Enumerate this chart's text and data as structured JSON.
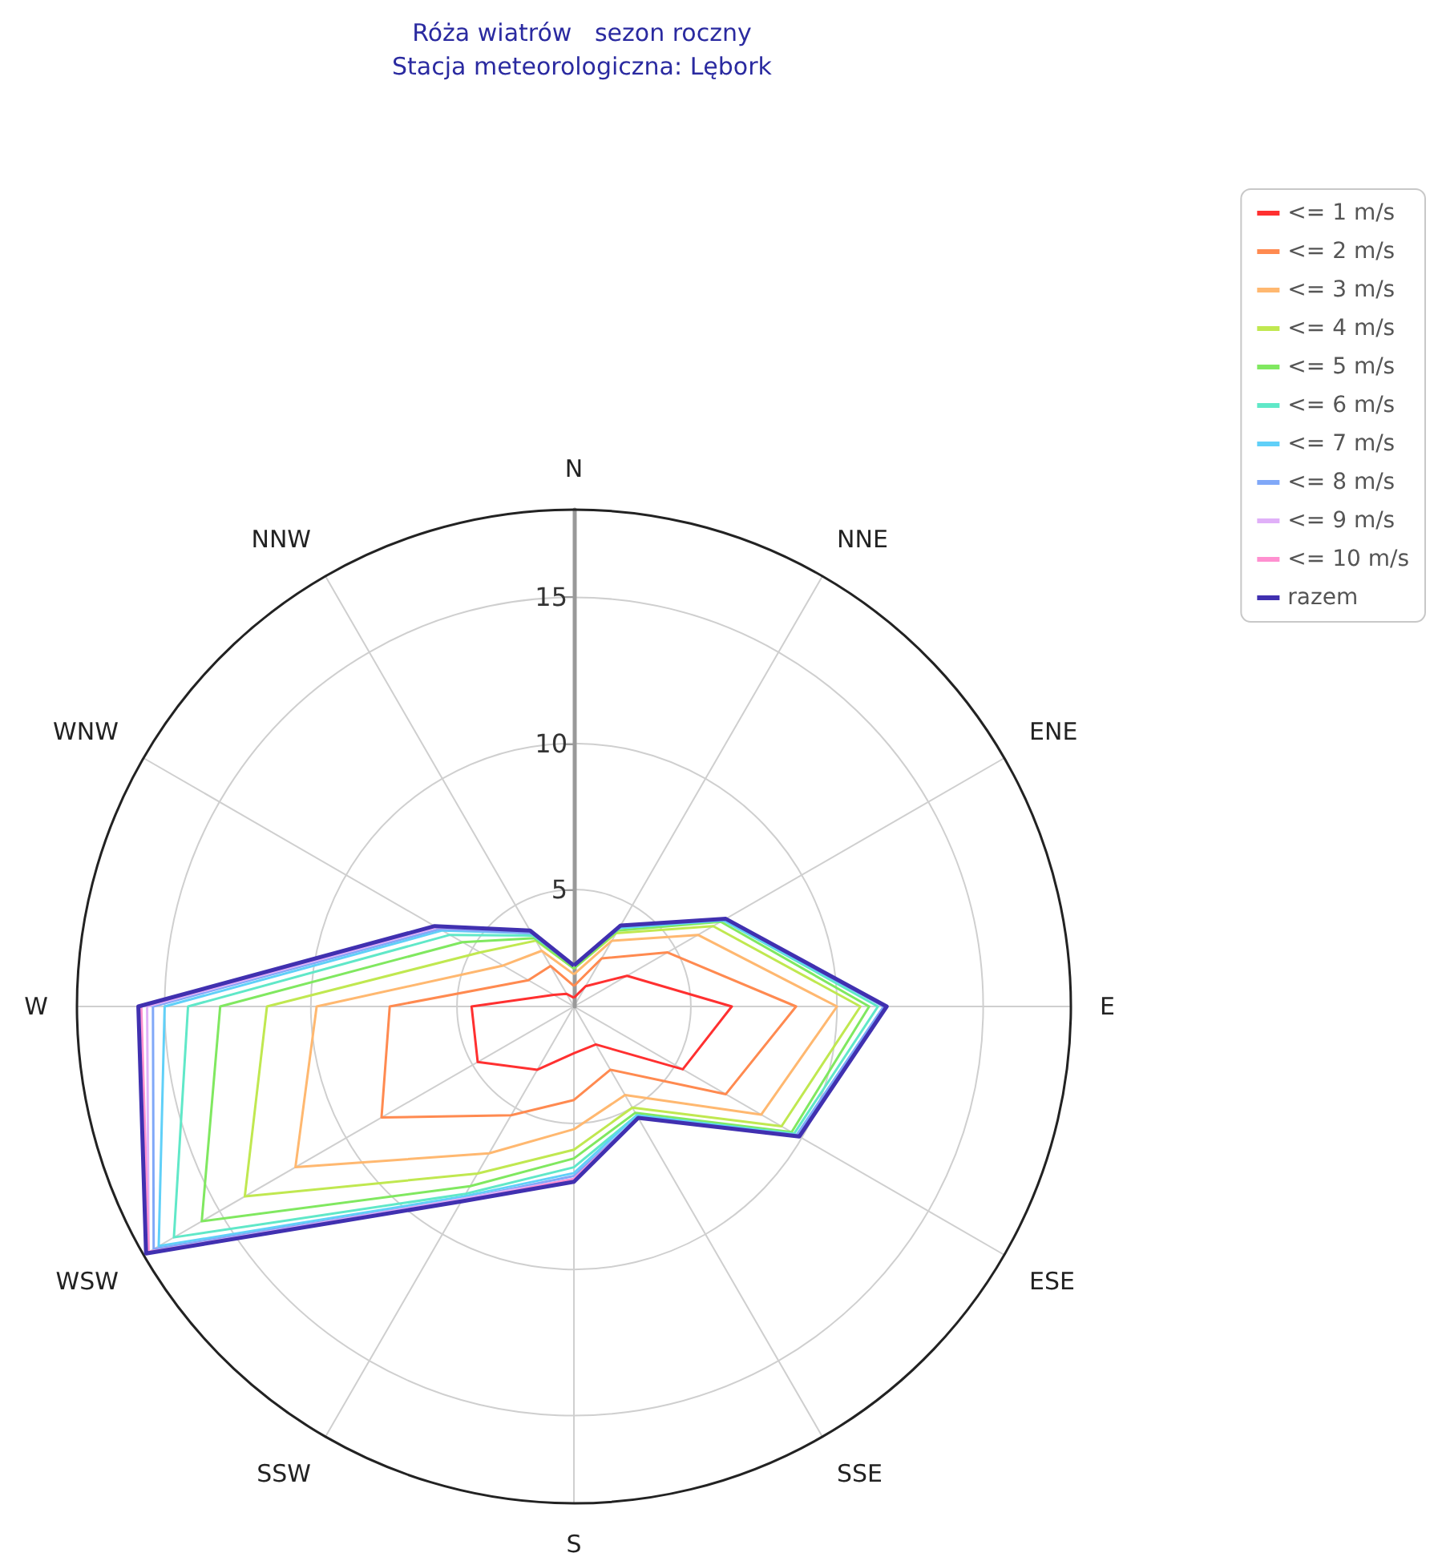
{
  "chart_data": {
    "type": "radar",
    "title": "Róża wiatrów   sezon roczny",
    "subtitle": "Stacja meteorologiczna: Lębork",
    "categories": [
      "N",
      "NNE",
      "ENE",
      "E",
      "ESE",
      "SSE",
      "S",
      "SSW",
      "WSW",
      "W",
      "WNW",
      "NNW"
    ],
    "ylim": [
      1,
      18
    ],
    "yticks": [
      5,
      10,
      15
    ],
    "grid": true,
    "legend": "top right",
    "series": [
      {
        "name": "<= 1 m/s",
        "color": "#ff3030",
        "values": [
          1.3,
          1.8,
          3.1,
          6.4,
          5.3,
          2.5,
          2.6,
          3.5,
          4.8,
          4.5,
          1.8,
          1.5
        ]
      },
      {
        "name": "<= 2 m/s",
        "color": "#ff8a50",
        "values": [
          1.7,
          2.9,
          4.7,
          8.6,
          7.0,
          3.5,
          4.2,
          5.3,
          8.6,
          7.3,
          2.8,
          2.6
        ]
      },
      {
        "name": "<= 3 m/s",
        "color": "#ffb870",
        "values": [
          2.1,
          3.6,
          5.9,
          10.0,
          8.4,
          4.5,
          5.2,
          6.8,
          12.0,
          9.8,
          3.8,
          3.2
        ]
      },
      {
        "name": "<= 4 m/s",
        "color": "#c0e850",
        "values": [
          2.3,
          3.9,
          6.5,
          10.8,
          9.2,
          5.0,
          5.9,
          7.6,
          14.0,
          11.5,
          4.7,
          3.6
        ]
      },
      {
        "name": "<= 5 m/s",
        "color": "#80e860",
        "values": [
          2.3,
          4.0,
          6.8,
          11.1,
          9.6,
          5.2,
          6.2,
          8.1,
          15.7,
          13.1,
          5.4,
          3.7
        ]
      },
      {
        "name": "<= 6 m/s",
        "color": "#60e8c8",
        "values": [
          2.4,
          4.1,
          6.9,
          11.4,
          9.7,
          5.3,
          6.5,
          8.4,
          16.8,
          14.2,
          5.9,
          3.8
        ]
      },
      {
        "name": "<= 7 m/s",
        "color": "#60d0f8",
        "values": [
          2.4,
          4.1,
          6.9,
          11.6,
          9.8,
          5.3,
          6.7,
          8.5,
          17.4,
          15.0,
          6.2,
          3.9
        ]
      },
      {
        "name": "<= 8 m/s",
        "color": "#80a8f8",
        "values": [
          2.4,
          4.2,
          7.0,
          11.6,
          9.8,
          5.4,
          6.8,
          8.6,
          17.6,
          15.4,
          6.3,
          3.9
        ]
      },
      {
        "name": "<= 9 m/s",
        "color": "#e0b0f8",
        "values": [
          2.4,
          4.2,
          7.0,
          11.7,
          9.9,
          5.4,
          6.9,
          8.6,
          17.8,
          15.6,
          6.4,
          4.0
        ]
      },
      {
        "name": "<= 10 m/s",
        "color": "#ff90d0",
        "values": [
          2.4,
          4.2,
          7.0,
          11.7,
          9.9,
          5.4,
          6.9,
          8.7,
          17.8,
          15.8,
          6.5,
          4.0
        ]
      },
      {
        "name": "razem",
        "color": "#4030b0",
        "values": [
          2.4,
          4.2,
          7.0,
          11.7,
          9.9,
          5.4,
          7.0,
          8.7,
          17.9,
          15.9,
          6.5,
          4.0
        ]
      }
    ]
  }
}
